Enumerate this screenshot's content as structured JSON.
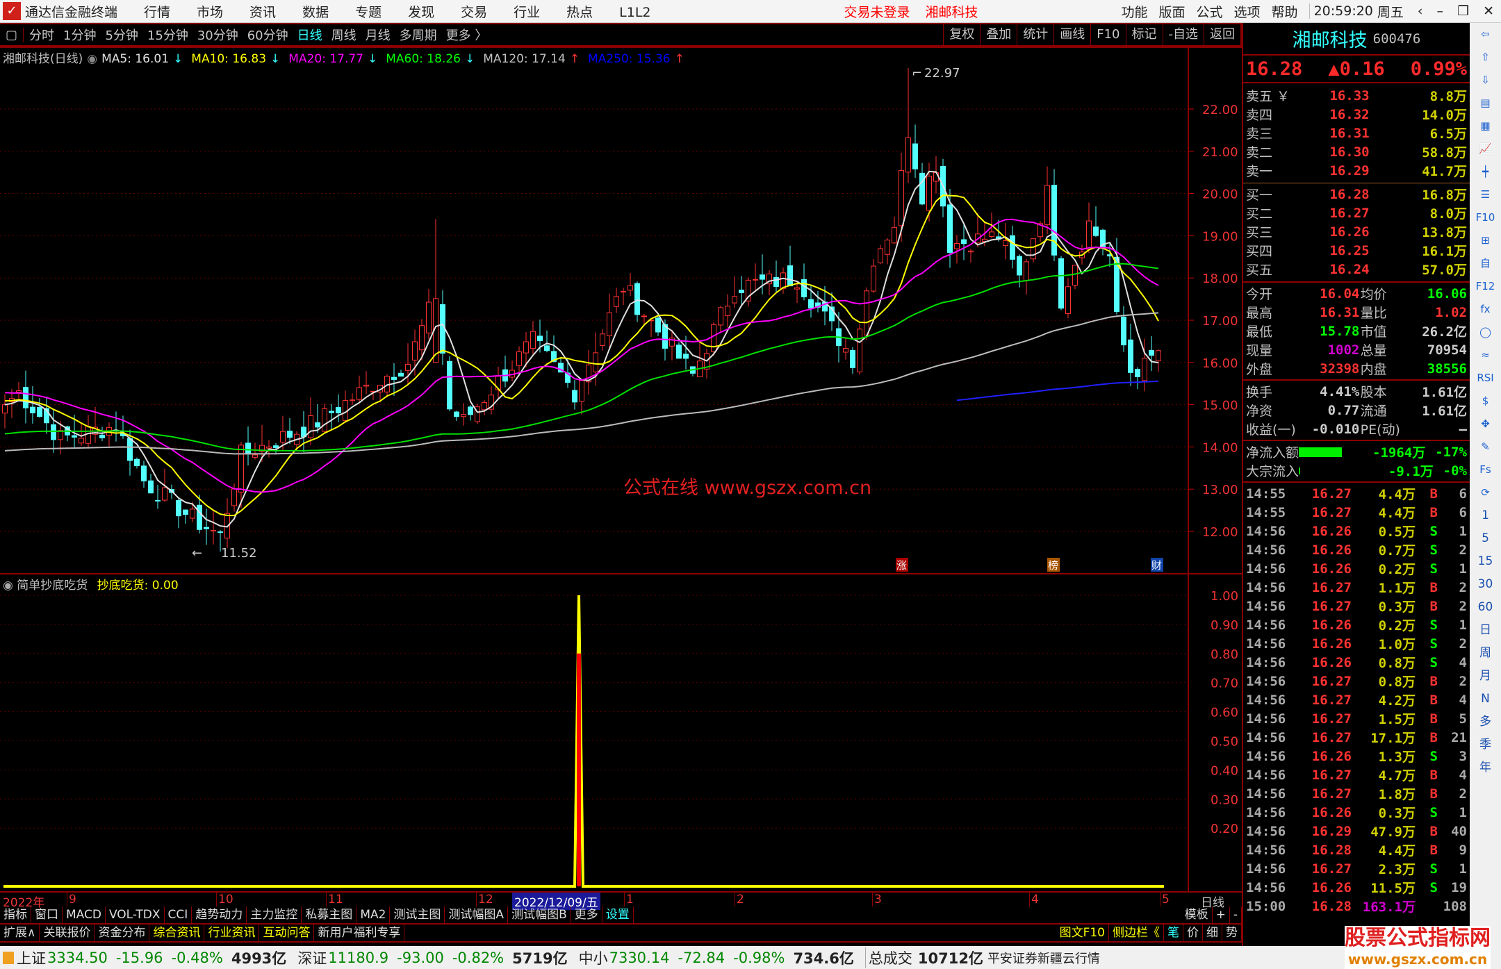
{
  "titlebar": {
    "app": "通达信金融终端",
    "menus": [
      "行情",
      "市场",
      "资讯",
      "数据",
      "专题",
      "发现",
      "交易",
      "行业",
      "热点",
      "L1L2"
    ],
    "login": "交易未登录",
    "stock": "湘邮科技",
    "right_menus": [
      "功能",
      "版面",
      "公式",
      "选项",
      "帮助"
    ],
    "clock": "20:59:20",
    "weekday": "周五"
  },
  "toolbar": {
    "periods": [
      "分时",
      "1分钟",
      "5分钟",
      "15分钟",
      "30分钟",
      "60分钟",
      "日线",
      "周线",
      "月线",
      "多周期",
      "更多 〉"
    ],
    "active": "日线",
    "tools": [
      "复权",
      "叠加",
      "统计",
      "画线",
      "F10",
      "标记",
      "-自选",
      "返回"
    ]
  },
  "legend": {
    "title": "湘邮科技(日线)",
    "items": [
      {
        "label": "MA5: 16.01",
        "color": "#e0e0e0",
        "arrow": "↓"
      },
      {
        "label": "MA10: 16.83",
        "color": "#ffff00",
        "arrow": "↓"
      },
      {
        "label": "MA20: 17.77",
        "color": "#ff00ff",
        "arrow": "↓"
      },
      {
        "label": "MA60: 18.26",
        "color": "#00ff00",
        "arrow": "↓"
      },
      {
        "label": "MA120: 17.14",
        "color": "#c0c0c0",
        "arrow": "↑"
      },
      {
        "label": "MA250: 15.36",
        "color": "#0000ff",
        "arrow": "↑"
      }
    ]
  },
  "price_axis": [
    "22.00",
    "21.00",
    "20.00",
    "19.00",
    "18.00",
    "17.00",
    "16.00",
    "15.00",
    "14.00",
    "13.00",
    "12.00"
  ],
  "annotations": {
    "high": "22.97",
    "low": "11.52",
    "markers": [
      "涨",
      "榜",
      "财"
    ],
    "watermark": "公式在线  www.gszx.com.cn"
  },
  "price_path": [
    [
      0,
      15.0
    ],
    [
      2,
      15.3
    ],
    [
      8,
      14.2
    ],
    [
      16,
      14.5
    ],
    [
      20,
      13.2
    ],
    [
      27,
      12.3
    ],
    [
      31,
      11.9
    ],
    [
      34,
      13.8
    ],
    [
      41,
      14.3
    ],
    [
      45,
      14.6
    ],
    [
      53,
      15.5
    ],
    [
      58,
      16.0
    ],
    [
      62,
      17.6
    ],
    [
      64,
      14.9
    ],
    [
      66,
      14.6
    ],
    [
      76,
      16.5
    ],
    [
      82,
      15.3
    ],
    [
      89,
      17.8
    ],
    [
      99,
      15.7
    ],
    [
      105,
      17.8
    ],
    [
      114,
      18.0
    ],
    [
      122,
      16.1
    ],
    [
      125,
      18.5
    ],
    [
      128,
      19.3
    ],
    [
      130,
      21.5
    ],
    [
      132,
      20.0
    ],
    [
      134,
      20.7
    ],
    [
      136,
      18.8
    ],
    [
      143,
      19.0
    ],
    [
      146,
      18.0
    ],
    [
      150,
      20.0
    ],
    [
      152,
      17.5
    ],
    [
      156,
      19.3
    ],
    [
      159,
      18.5
    ],
    [
      160,
      17.0
    ],
    [
      162,
      15.8
    ],
    [
      164,
      15.9
    ],
    [
      166,
      16.28
    ]
  ],
  "indicator": {
    "name": "简单抄底吃货",
    "value_label": "抄底吃货: 0.00",
    "axis": [
      "1.00",
      "0.90",
      "0.80",
      "0.70",
      "0.60",
      "0.50",
      "0.40",
      "0.30",
      "0.20"
    ],
    "signal_index": 83,
    "signal_value": 1.0
  },
  "date_axis": {
    "year": "2022年",
    "months": [
      "9",
      "10",
      "11",
      "12",
      "1",
      "2",
      "3",
      "4",
      "5"
    ],
    "cursor": "2022/12/09/五",
    "period": "日线"
  },
  "tabs1": [
    "指标",
    "窗口",
    "MACD",
    "VOL-TDX",
    "CCI",
    "趋势动力",
    "主力监控",
    "私募主图",
    "MA2",
    "测试主图",
    "测试幅图A",
    "测试幅图B",
    "更多",
    "设置"
  ],
  "tabs1_right": [
    "模板",
    "+",
    "-"
  ],
  "tabs2": [
    "扩展∧",
    "关联报价",
    "资金分布",
    "综合资讯",
    "行业资讯",
    "互动问答",
    "新用户福利专享"
  ],
  "tabs2_right": [
    "图文F10",
    "侧边栏《",
    "笔",
    "价",
    "细",
    "势"
  ],
  "quote": {
    "name": "湘邮科技",
    "code": "600476",
    "price": "16.28",
    "change": "▲0.16",
    "pct": "0.99%",
    "asks": [
      [
        "卖五 ￥",
        "16.33",
        "8.8万"
      ],
      [
        "卖四",
        "16.32",
        "14.0万"
      ],
      [
        "卖三",
        "16.31",
        "6.5万"
      ],
      [
        "卖二",
        "16.30",
        "58.8万"
      ],
      [
        "卖一",
        "16.29",
        "41.7万"
      ]
    ],
    "bids": [
      [
        "买一",
        "16.28",
        "16.8万"
      ],
      [
        "买二",
        "16.27",
        "8.0万"
      ],
      [
        "买三",
        "16.26",
        "13.8万"
      ],
      [
        "买四",
        "16.25",
        "16.1万"
      ],
      [
        "买五",
        "16.24",
        "57.0万"
      ]
    ],
    "stats": [
      [
        "今开",
        "16.04",
        "均价",
        "16.06"
      ],
      [
        "最高",
        "16.31",
        "量比",
        "1.02"
      ],
      [
        "最低",
        "15.78",
        "市值",
        "26.2亿"
      ],
      [
        "现量",
        "1002",
        "总量",
        "70954"
      ],
      [
        "外盘",
        "32398",
        "内盘",
        "38556"
      ]
    ],
    "stats2": [
      [
        "换手",
        "4.41%",
        "股本",
        "1.61亿"
      ],
      [
        "净资",
        "0.77",
        "流通",
        "1.61亿"
      ],
      [
        "收益(一)",
        "-0.010",
        "PE(动)",
        "—"
      ]
    ],
    "flows": [
      [
        "净流入额",
        "-1964万",
        "-17%"
      ],
      [
        "大宗流入",
        "-9.1万",
        "-0%"
      ]
    ]
  },
  "trades": [
    [
      "14:55",
      "16.27",
      "4.4万",
      "B",
      "6"
    ],
    [
      "14:55",
      "16.27",
      "4.4万",
      "B",
      "6"
    ],
    [
      "14:56",
      "16.26",
      "0.5万",
      "S",
      "1"
    ],
    [
      "14:56",
      "16.26",
      "0.7万",
      "S",
      "2"
    ],
    [
      "14:56",
      "16.26",
      "0.2万",
      "S",
      "1"
    ],
    [
      "14:56",
      "16.27",
      "1.1万",
      "B",
      "2"
    ],
    [
      "14:56",
      "16.27",
      "0.3万",
      "B",
      "2"
    ],
    [
      "14:56",
      "16.26",
      "0.2万",
      "S",
      "1"
    ],
    [
      "14:56",
      "16.26",
      "1.0万",
      "S",
      "2"
    ],
    [
      "14:56",
      "16.26",
      "0.8万",
      "S",
      "4"
    ],
    [
      "14:56",
      "16.27",
      "0.8万",
      "B",
      "2"
    ],
    [
      "14:56",
      "16.27",
      "4.2万",
      "B",
      "4"
    ],
    [
      "14:56",
      "16.27",
      "1.5万",
      "B",
      "5"
    ],
    [
      "14:56",
      "16.27",
      "17.1万",
      "B",
      "21"
    ],
    [
      "14:56",
      "16.26",
      "1.3万",
      "S",
      "3"
    ],
    [
      "14:56",
      "16.27",
      "4.7万",
      "B",
      "4"
    ],
    [
      "14:56",
      "16.27",
      "1.8万",
      "B",
      "2"
    ],
    [
      "14:56",
      "16.26",
      "0.3万",
      "S",
      "1"
    ],
    [
      "14:56",
      "16.29",
      "47.9万",
      "B",
      "40"
    ],
    [
      "14:56",
      "16.28",
      "4.4万",
      "B",
      "9"
    ],
    [
      "14:56",
      "16.27",
      "2.3万",
      "S",
      "1"
    ],
    [
      "14:56",
      "16.26",
      "11.5万",
      "S",
      "19"
    ],
    [
      "15:00",
      "16.28",
      "163.1万",
      "",
      "108"
    ]
  ],
  "sidebar": [
    "⇦",
    "⇧",
    "⇩",
    "▤",
    "▦",
    "📈",
    "┿",
    "☰",
    "F10",
    "⊞",
    "自",
    "F12",
    "fx",
    "◯",
    "≈",
    "RSI",
    "$",
    "✥",
    "✎",
    "Fs",
    "⟳",
    "1",
    "5",
    "15",
    "30",
    "60",
    "日",
    "周",
    "月",
    "N",
    "多",
    "季",
    "年"
  ],
  "status": {
    "sh": [
      "上证",
      "3334.50",
      "-15.96",
      "-0.48%",
      "4993亿"
    ],
    "sz": [
      "深证",
      "11180.9",
      "-93.00",
      "-0.82%",
      "5719亿"
    ],
    "zx": [
      "中小",
      "7330.14",
      "-72.84",
      "-0.98%",
      "734.6亿"
    ],
    "total": [
      "总成交",
      "10712亿"
    ],
    "broker": "平安证券新疆云行情"
  },
  "watermark2": {
    "title": "股票公式指标网",
    "url": "www.gszx.com.cn"
  }
}
